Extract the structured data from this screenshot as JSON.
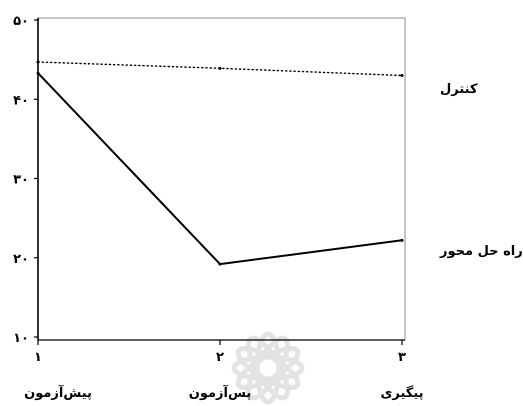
{
  "chart_data": {
    "type": "line",
    "x": [
      1,
      2,
      3
    ],
    "x_tick_labels": [
      "۱",
      "۲",
      "۳"
    ],
    "categories": [
      "پیش‌آزمون",
      "پس‌آزمون",
      "پیگیری"
    ],
    "y_ticks": [
      50,
      40,
      30,
      20,
      10
    ],
    "y_tick_labels": [
      "۵۰",
      "۴۰",
      "۳۰",
      "۲۰",
      "۱۰"
    ],
    "xlim": [
      1,
      3
    ],
    "ylim": [
      10,
      50
    ],
    "grid": false,
    "legend": "right",
    "series": [
      {
        "name": "کنترل",
        "values": [
          44.7,
          43.9,
          43.0
        ],
        "line_style": "dotted",
        "color": "#000000"
      },
      {
        "name": "راه حل محور",
        "values": [
          43.3,
          19.2,
          22.2
        ],
        "line_style": "solid",
        "color": "#000000"
      }
    ]
  },
  "colors": {
    "axis": "#000000",
    "frame": "#8c8c8c",
    "background": "#ffffff"
  },
  "icons": {
    "watermark": "emblem-watermark-icon"
  }
}
